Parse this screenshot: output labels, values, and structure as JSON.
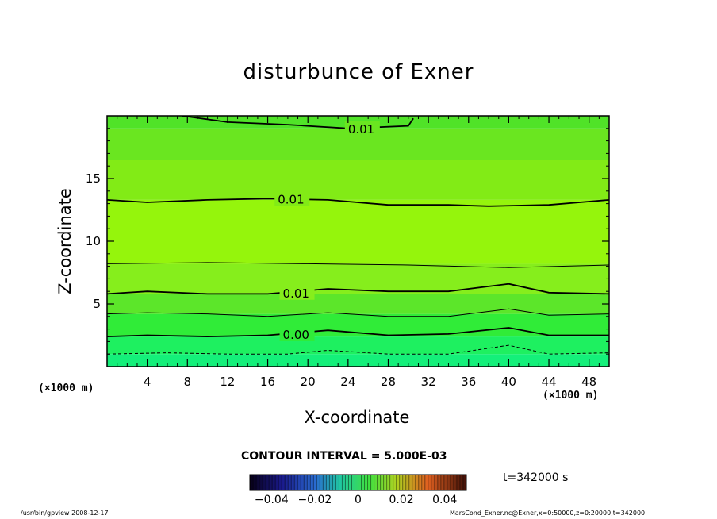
{
  "chart_data": {
    "type": "contour",
    "title": "disturbunce of Exner",
    "xlabel": "X-coordinate",
    "ylabel": "Z-coordinate",
    "x_unit_left": "(×1000 m)",
    "x_unit_right": "(×1000 m)",
    "xlim": [
      0,
      50
    ],
    "ylim": [
      0,
      20
    ],
    "x_ticks": [
      4,
      8,
      12,
      16,
      20,
      24,
      28,
      32,
      36,
      40,
      44,
      48
    ],
    "y_ticks": [
      5,
      10,
      15
    ],
    "contour_interval_text": "CONTOUR INTERVAL = 5.000E-03",
    "time_text": "t=342000 s",
    "colorbar": {
      "range": [
        -0.05,
        0.05
      ],
      "tick_values": [
        -0.04,
        -0.02,
        0,
        0.02,
        0.04
      ],
      "tick_labels": [
        "−0.04",
        "−0.02",
        "0",
        "0.02",
        "0.04"
      ]
    },
    "contours": [
      {
        "label": "0.01",
        "style": "solid",
        "label_x": 24.0,
        "points": [
          [
            7.5,
            20.0
          ],
          [
            12,
            19.5
          ],
          [
            18,
            19.3
          ],
          [
            24,
            19.0
          ],
          [
            30,
            19.2
          ],
          [
            30.5,
            19.8
          ]
        ]
      },
      {
        "label": "0.01",
        "style": "solid",
        "label_x": 17.0,
        "points": [
          [
            0,
            13.3
          ],
          [
            4,
            13.1
          ],
          [
            10,
            13.3
          ],
          [
            16,
            13.4
          ],
          [
            22,
            13.3
          ],
          [
            28,
            12.9
          ],
          [
            34,
            12.9
          ],
          [
            38,
            12.8
          ],
          [
            44,
            12.9
          ],
          [
            50,
            13.3
          ]
        ]
      },
      {
        "label": "",
        "style": "thin",
        "label_x": null,
        "points": [
          [
            0,
            8.2
          ],
          [
            10,
            8.3
          ],
          [
            20,
            8.2
          ],
          [
            30,
            8.1
          ],
          [
            40,
            7.9
          ],
          [
            50,
            8.1
          ]
        ]
      },
      {
        "label": "0.01",
        "style": "solid",
        "label_x": 17.5,
        "points": [
          [
            0,
            5.8
          ],
          [
            4,
            6.0
          ],
          [
            10,
            5.8
          ],
          [
            16,
            5.8
          ],
          [
            22,
            6.2
          ],
          [
            28,
            6.0
          ],
          [
            34,
            6.0
          ],
          [
            40,
            6.6
          ],
          [
            44,
            5.9
          ],
          [
            50,
            5.8
          ]
        ]
      },
      {
        "label": "",
        "style": "thin",
        "label_x": null,
        "points": [
          [
            0,
            4.2
          ],
          [
            4,
            4.3
          ],
          [
            10,
            4.2
          ],
          [
            16,
            4.0
          ],
          [
            22,
            4.3
          ],
          [
            28,
            4.0
          ],
          [
            34,
            4.0
          ],
          [
            40,
            4.6
          ],
          [
            44,
            4.1
          ],
          [
            50,
            4.2
          ]
        ]
      },
      {
        "label": "0.00",
        "style": "solid",
        "label_x": 17.5,
        "points": [
          [
            0,
            2.4
          ],
          [
            4,
            2.5
          ],
          [
            10,
            2.4
          ],
          [
            16,
            2.5
          ],
          [
            22,
            2.9
          ],
          [
            28,
            2.5
          ],
          [
            34,
            2.6
          ],
          [
            40,
            3.1
          ],
          [
            44,
            2.5
          ],
          [
            50,
            2.5
          ]
        ]
      },
      {
        "label": "",
        "style": "dashed",
        "label_x": null,
        "points": [
          [
            0,
            1.0
          ],
          [
            6,
            1.1
          ],
          [
            12,
            1.0
          ],
          [
            18,
            1.0
          ],
          [
            22,
            1.3
          ],
          [
            28,
            1.0
          ],
          [
            34,
            1.0
          ],
          [
            40,
            1.7
          ],
          [
            44,
            1.0
          ],
          [
            50,
            1.1
          ]
        ]
      }
    ],
    "fill_bands": [
      {
        "y0": 0,
        "y1": 1.0,
        "color": "#14f07a"
      },
      {
        "y0": 1.0,
        "y1": 2.4,
        "color": "#1ef060"
      },
      {
        "y0": 2.4,
        "y1": 4.2,
        "color": "#30ec38"
      },
      {
        "y0": 4.2,
        "y1": 5.8,
        "color": "#5ce62a"
      },
      {
        "y0": 5.8,
        "y1": 8.2,
        "color": "#86ee1c"
      },
      {
        "y0": 8.2,
        "y1": 13.3,
        "color": "#95f50c"
      },
      {
        "y0": 13.3,
        "y1": 16.5,
        "color": "#82eb16"
      },
      {
        "y0": 16.5,
        "y1": 19.0,
        "color": "#6ae620"
      },
      {
        "y0": 19.0,
        "y1": 20.0,
        "color": "#50e328"
      }
    ]
  },
  "footer": {
    "left": "/usr/bin/gpview   2008-12-17",
    "right": "MarsCond_Exner.nc@Exner,x=0:50000,z=0:20000,t=342000"
  }
}
